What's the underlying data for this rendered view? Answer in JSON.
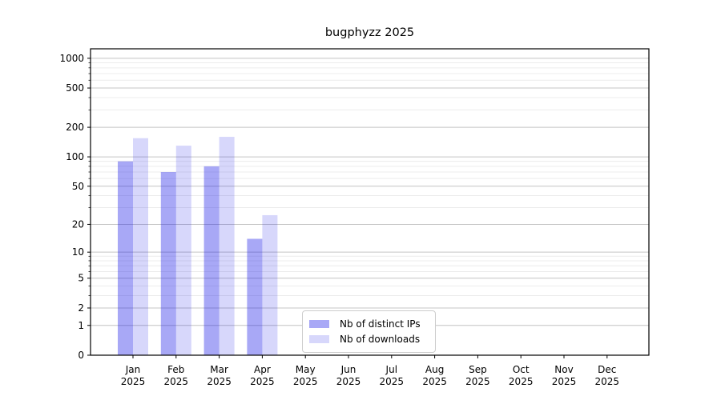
{
  "title": "bugphyzz 2025",
  "legend": {
    "items": [
      {
        "label": "Nb of distinct IPs",
        "color": "rgba(20,20,230,0.37)"
      },
      {
        "label": "Nb of downloads",
        "color": "rgba(20,20,230,0.17)"
      }
    ]
  },
  "chart_data": {
    "type": "bar",
    "title": "bugphyzz 2025",
    "y_scale": "log1p",
    "categories": [
      "Jan 2025",
      "Feb 2025",
      "Mar 2025",
      "Apr 2025",
      "May 2025",
      "Jun 2025",
      "Jul 2025",
      "Aug 2025",
      "Sep 2025",
      "Oct 2025",
      "Nov 2025",
      "Dec 2025"
    ],
    "series": [
      {
        "name": "Nb of distinct IPs",
        "color": "rgba(20,20,230,0.37)",
        "values": [
          90,
          70,
          80,
          14,
          null,
          null,
          null,
          null,
          null,
          null,
          null,
          null
        ]
      },
      {
        "name": "Nb of downloads",
        "color": "rgba(20,20,230,0.17)",
        "values": [
          155,
          130,
          160,
          25,
          null,
          null,
          null,
          null,
          null,
          null,
          null,
          null
        ]
      }
    ],
    "y_ticks": [
      0,
      1,
      2,
      5,
      10,
      20,
      50,
      100,
      200,
      500,
      1000
    ],
    "y_minor_ticks": [
      3,
      4,
      6,
      7,
      8,
      9,
      30,
      40,
      60,
      70,
      80,
      90,
      300,
      400,
      600,
      700,
      800,
      900
    ],
    "ylim": [
      0,
      1250
    ],
    "xlabel": "",
    "ylabel": "",
    "grid": "both",
    "legend_position": "lower center",
    "colors": {
      "major_grid": "#c4c4c4",
      "minor_grid": "#ececec",
      "axis": "#000000",
      "background": "#ffffff",
      "text": "#000000"
    }
  }
}
